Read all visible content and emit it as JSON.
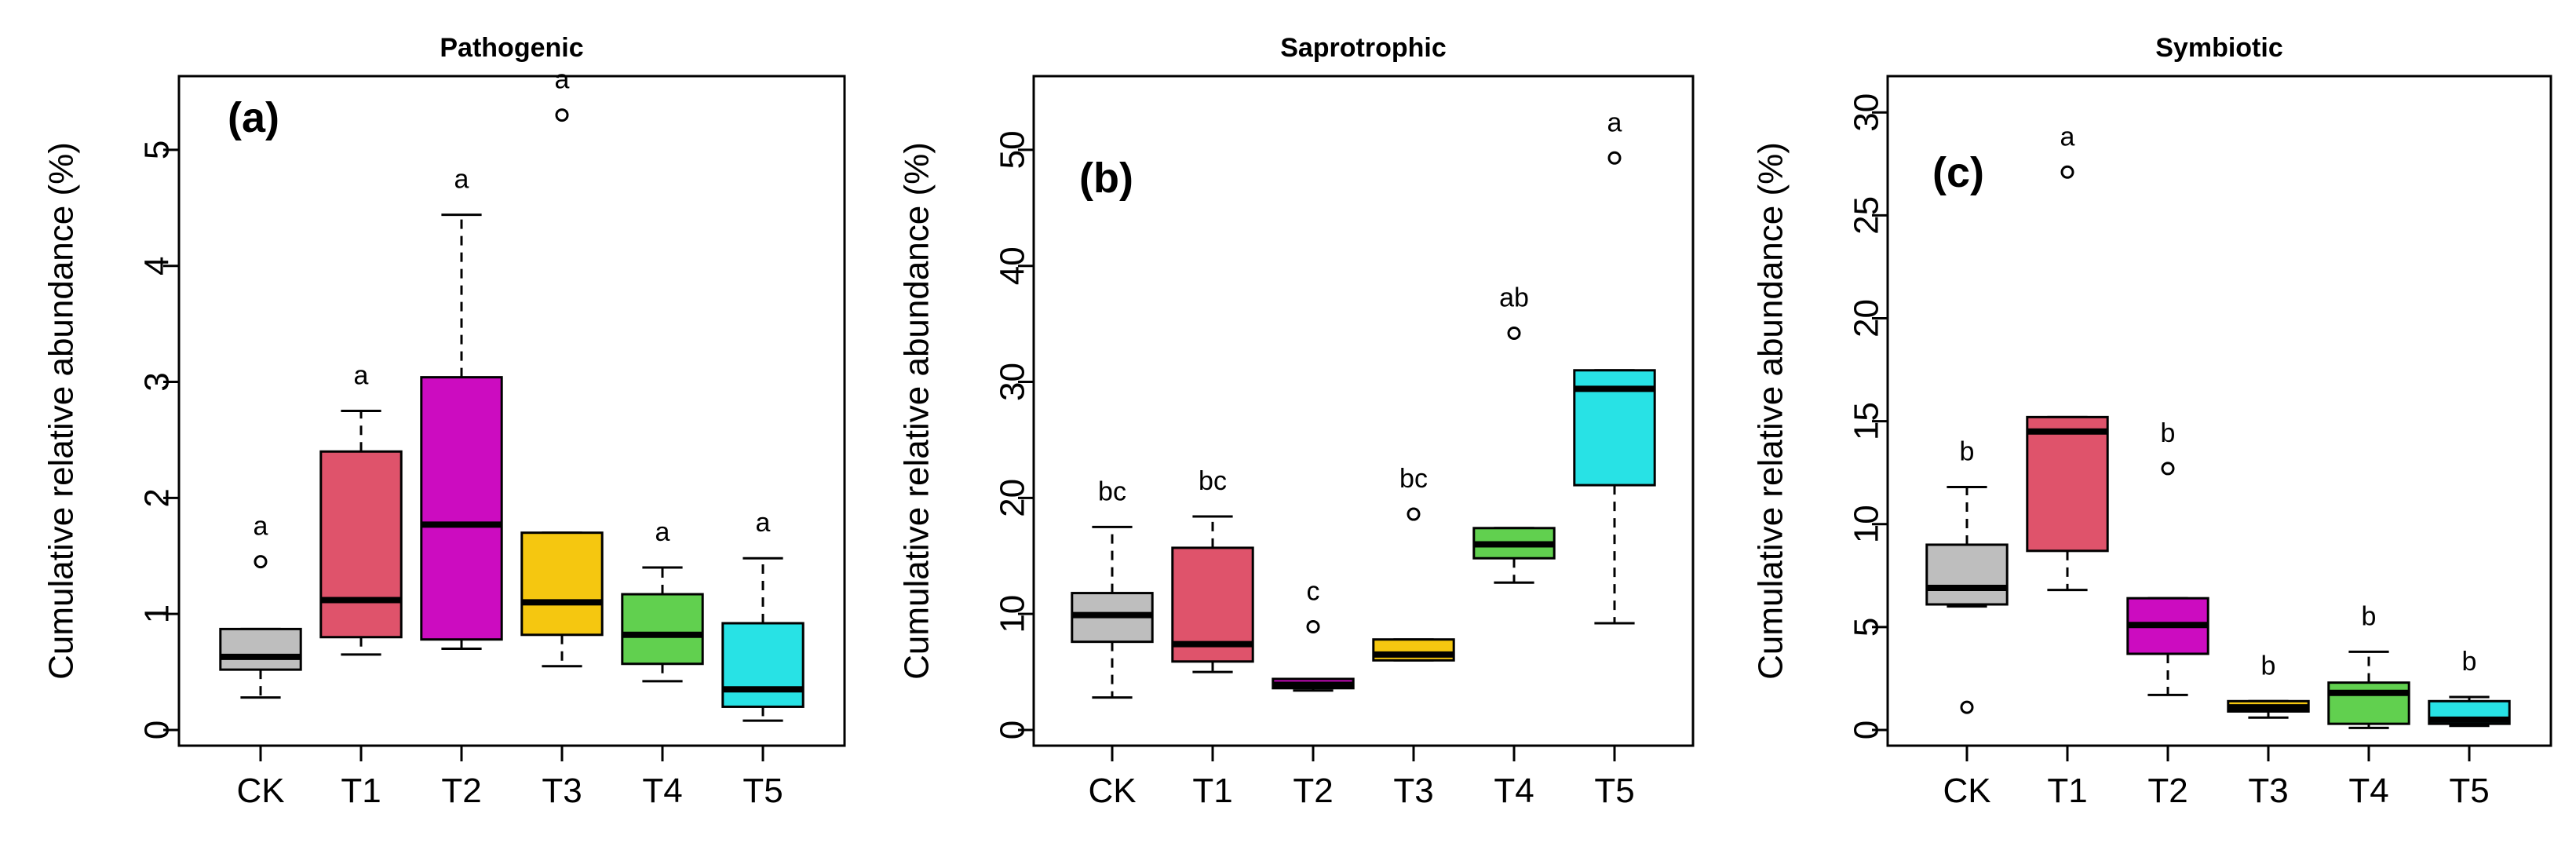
{
  "chart_data": [
    {
      "type": "boxplot",
      "title": "Pathogenic",
      "panel_label": "(a)",
      "xlabel": "",
      "ylabel": "Cumulative relative abundance (%)",
      "categories": [
        "CK",
        "T1",
        "T2",
        "T3",
        "T4",
        "T5"
      ],
      "ylim": [
        0,
        5.5
      ],
      "yticks": [
        0,
        1,
        2,
        3,
        4,
        5
      ],
      "ytick_labels": [
        "0",
        "1",
        "2",
        "3",
        "4",
        "5"
      ],
      "boxes": [
        {
          "category": "CK",
          "color": "#BEBEBE",
          "min": 0.28,
          "q1": 0.52,
          "median": 0.63,
          "q3": 0.87,
          "max": 0.87,
          "outliers": [
            1.45
          ],
          "letter": "a"
        },
        {
          "category": "T1",
          "color": "#DF536B",
          "min": 0.65,
          "q1": 0.8,
          "median": 1.12,
          "q3": 2.4,
          "max": 2.75,
          "outliers": [],
          "letter": "a"
        },
        {
          "category": "T2",
          "color": "#CC0CC0",
          "min": 0.7,
          "q1": 0.78,
          "median": 1.77,
          "q3": 3.04,
          "max": 4.44,
          "outliers": [],
          "letter": "a"
        },
        {
          "category": "T3",
          "color": "#F5C710",
          "min": 0.55,
          "q1": 0.82,
          "median": 1.1,
          "q3": 1.7,
          "max": 1.7,
          "outliers": [
            5.3
          ],
          "letter": "a"
        },
        {
          "category": "T4",
          "color": "#61D04F",
          "min": 0.42,
          "q1": 0.57,
          "median": 0.82,
          "q3": 1.17,
          "max": 1.4,
          "outliers": [],
          "letter": "a"
        },
        {
          "category": "T5",
          "color": "#28E2E5",
          "min": 0.08,
          "q1": 0.2,
          "median": 0.35,
          "q3": 0.92,
          "max": 1.48,
          "outliers": [],
          "letter": "a"
        }
      ]
    },
    {
      "type": "boxplot",
      "title": "Saprotrophic",
      "panel_label": "(b)",
      "xlabel": "",
      "ylabel": "Cumulative relative abundance (%)",
      "categories": [
        "CK",
        "T1",
        "T2",
        "T3",
        "T4",
        "T5"
      ],
      "ylim": [
        0,
        55
      ],
      "yticks": [
        0,
        10,
        20,
        30,
        40,
        50
      ],
      "ytick_labels": [
        "0",
        "10",
        "20",
        "30",
        "40",
        "50"
      ],
      "boxes": [
        {
          "category": "CK",
          "color": "#BEBEBE",
          "min": 2.8,
          "q1": 7.6,
          "median": 9.9,
          "q3": 11.8,
          "max": 17.5,
          "outliers": [],
          "letter": "bc"
        },
        {
          "category": "T1",
          "color": "#DF536B",
          "min": 5.0,
          "q1": 5.9,
          "median": 7.4,
          "q3": 15.7,
          "max": 18.4,
          "outliers": [],
          "letter": "bc"
        },
        {
          "category": "T2",
          "color": "#CC0CC0",
          "min": 3.4,
          "q1": 3.6,
          "median": 3.9,
          "q3": 4.4,
          "max": 4.4,
          "outliers": [
            8.9
          ],
          "letter": "c"
        },
        {
          "category": "T3",
          "color": "#F5C710",
          "min": 6.0,
          "q1": 6.0,
          "median": 6.5,
          "q3": 7.8,
          "max": 7.8,
          "outliers": [
            18.6
          ],
          "letter": "bc"
        },
        {
          "category": "T4",
          "color": "#61D04F",
          "min": 12.7,
          "q1": 14.8,
          "median": 16.0,
          "q3": 17.4,
          "max": 17.4,
          "outliers": [
            34.2
          ],
          "letter": "ab"
        },
        {
          "category": "T5",
          "color": "#28E2E5",
          "min": 9.2,
          "q1": 21.1,
          "median": 29.4,
          "q3": 31.0,
          "max": 31.0,
          "outliers": [
            49.3
          ],
          "letter": "a"
        }
      ]
    },
    {
      "type": "boxplot",
      "title": "Symbiotic",
      "panel_label": "(c)",
      "xlabel": "",
      "ylabel": "Cumulative relative abundance (%)",
      "categories": [
        "CK",
        "T1",
        "T2",
        "T3",
        "T4",
        "T5"
      ],
      "ylim": [
        0,
        31
      ],
      "yticks": [
        0,
        5,
        10,
        15,
        20,
        25,
        30
      ],
      "ytick_labels": [
        "0",
        "5",
        "10",
        "15",
        "20",
        "25",
        "30"
      ],
      "boxes": [
        {
          "category": "CK",
          "color": "#BEBEBE",
          "min": 6.0,
          "q1": 6.1,
          "median": 6.9,
          "q3": 9.0,
          "max": 11.8,
          "outliers": [
            1.1
          ],
          "letter": "b"
        },
        {
          "category": "T1",
          "color": "#DF536B",
          "min": 6.8,
          "q1": 8.7,
          "median": 14.5,
          "q3": 15.2,
          "max": 15.2,
          "outliers": [
            27.1
          ],
          "letter": "a"
        },
        {
          "category": "T2",
          "color": "#CC0CC0",
          "min": 1.7,
          "q1": 3.7,
          "median": 5.1,
          "q3": 6.4,
          "max": 6.4,
          "outliers": [
            12.7
          ],
          "letter": "b"
        },
        {
          "category": "T3",
          "color": "#F5C710",
          "min": 0.6,
          "q1": 0.9,
          "median": 1.1,
          "q3": 1.4,
          "max": 1.4,
          "outliers": [],
          "letter": "b"
        },
        {
          "category": "T4",
          "color": "#61D04F",
          "min": 0.1,
          "q1": 0.3,
          "median": 1.8,
          "q3": 2.3,
          "max": 3.8,
          "outliers": [],
          "letter": "b"
        },
        {
          "category": "T5",
          "color": "#28E2E5",
          "min": 0.2,
          "q1": 0.3,
          "median": 0.5,
          "q3": 1.4,
          "max": 1.6,
          "outliers": [],
          "letter": "b"
        }
      ]
    }
  ]
}
